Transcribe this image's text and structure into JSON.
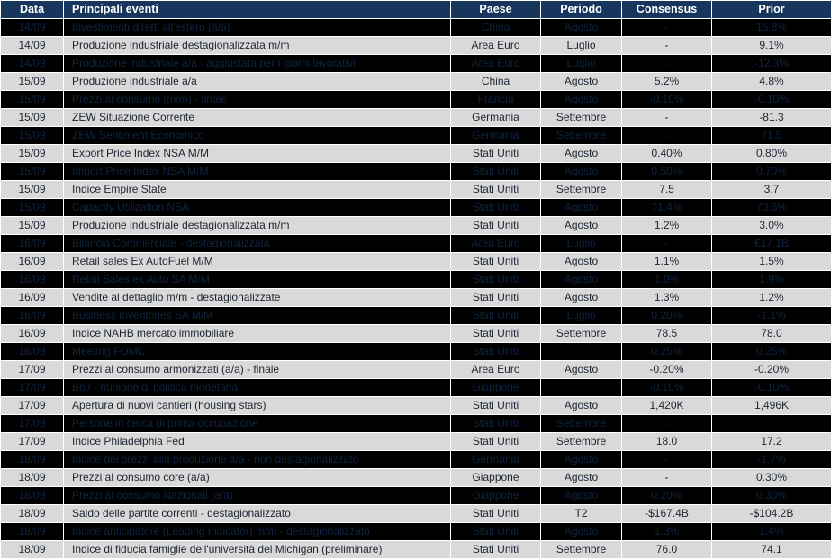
{
  "colors": {
    "header_bg": "#17365d",
    "header_text": "#ffffff",
    "row_light_bg": "#d9d9d9",
    "row_light_text": "#1d2433",
    "row_dark_bg": "#000000",
    "row_dark_text": "#0f2440",
    "grid": "#ffffff"
  },
  "table": {
    "columns": [
      {
        "key": "date",
        "label": "Data"
      },
      {
        "key": "event",
        "label": "Principali eventi"
      },
      {
        "key": "country",
        "label": "Paese"
      },
      {
        "key": "period",
        "label": "Periodo"
      },
      {
        "key": "consensus",
        "label": "Consensus"
      },
      {
        "key": "prior",
        "label": "Prior"
      }
    ],
    "rows": [
      {
        "dark": true,
        "date": "14/09",
        "event": "Investimenti diretti all'estero (a/a)",
        "country": "China",
        "period": "Agosto",
        "consensus": "-",
        "prior": "15.8%"
      },
      {
        "dark": false,
        "date": "14/09",
        "event": "Produzione industriale destagionalizzata m/m",
        "country": "Area Euro",
        "period": "Luglio",
        "consensus": "-",
        "prior": "9.1%"
      },
      {
        "dark": true,
        "date": "14/09",
        "event": "Produzione industriale a/a - aggiustata per i giorni lavorativi",
        "country": "Area Euro",
        "period": "Luglio",
        "consensus": "-",
        "prior": "-12.3%"
      },
      {
        "dark": false,
        "date": "15/09",
        "event": "Produzione industriale a/a",
        "country": "China",
        "period": "Agosto",
        "consensus": "5.2%",
        "prior": "4.8%"
      },
      {
        "dark": true,
        "date": "15/09",
        "event": "Prezzi al consumo (m/m) - finale",
        "country": "Francia",
        "period": "Agosto",
        "consensus": "-0.10%",
        "prior": "-0.10%"
      },
      {
        "dark": false,
        "date": "15/09",
        "event": "ZEW Situazione Corrente",
        "country": "Germania",
        "period": "Settembre",
        "consensus": "-",
        "prior": "-81.3"
      },
      {
        "dark": true,
        "date": "15/09",
        "event": "ZEW Sentiment Economico",
        "country": "Germania",
        "period": "Settembre",
        "consensus": "-",
        "prior": "71.5"
      },
      {
        "dark": false,
        "date": "15/09",
        "event": "Export Price Index NSA M/M",
        "country": "Stati Uniti",
        "period": "Agosto",
        "consensus": "0.40%",
        "prior": "0.80%"
      },
      {
        "dark": true,
        "date": "15/09",
        "event": "Import Price Index NSA M/M",
        "country": "Stati Uniti",
        "period": "Agosto",
        "consensus": "0.50%",
        "prior": "0.70%"
      },
      {
        "dark": false,
        "date": "15/09",
        "event": "Indice Empire State",
        "country": "Stati Uniti",
        "period": "Settembre",
        "consensus": "7.5",
        "prior": "3.7"
      },
      {
        "dark": true,
        "date": "15/09",
        "event": "Capacity Utilization NSA",
        "country": "Stati Uniti",
        "period": "Agosto",
        "consensus": "71.4%",
        "prior": "70.6%"
      },
      {
        "dark": false,
        "date": "15/09",
        "event": "Produzione industriale destagionalizzata m/m",
        "country": "Stati Uniti",
        "period": "Agosto",
        "consensus": "1.2%",
        "prior": "3.0%"
      },
      {
        "dark": true,
        "date": "16/09",
        "event": "Bilancia Commerciale - destagionalizzata",
        "country": "Area Euro",
        "period": "Luglio",
        "consensus": "-",
        "prior": "€17.1B"
      },
      {
        "dark": false,
        "date": "16/09",
        "event": "Retail sales Ex AutoFuel M/M",
        "country": "Stati Uniti",
        "period": "Agosto",
        "consensus": "1.1%",
        "prior": "1.5%"
      },
      {
        "dark": true,
        "date": "16/09",
        "event": "Retail Sales ex Auto SA M/M",
        "country": "Stati Uniti",
        "period": "Agosto",
        "consensus": "1.0%",
        "prior": "1.9%"
      },
      {
        "dark": false,
        "date": "16/09",
        "event": "Vendite al dettaglio m/m - destagionalizzate",
        "country": "Stati Uniti",
        "period": "Agosto",
        "consensus": "1.3%",
        "prior": "1.2%"
      },
      {
        "dark": true,
        "date": "16/09",
        "event": "Business Inventories SA M/M",
        "country": "Stati Uniti",
        "period": "Luglio",
        "consensus": "0.20%",
        "prior": "-1.1%"
      },
      {
        "dark": false,
        "date": "16/09",
        "event": "Indice NAHB mercato immobiliare",
        "country": "Stati Uniti",
        "period": "Settembre",
        "consensus": "78.5",
        "prior": "78.0"
      },
      {
        "dark": true,
        "date": "16/09",
        "event": "Meeting FOMC",
        "country": "Stati Uniti",
        "period": "",
        "consensus": "0.25%",
        "prior": "0.25%"
      },
      {
        "dark": false,
        "date": "17/09",
        "event": "Prezzi al consumo armonizzati (a/a) - finale",
        "country": "Area Euro",
        "period": "Agosto",
        "consensus": "-0.20%",
        "prior": "-0.20%"
      },
      {
        "dark": true,
        "date": "17/09",
        "event": "BoJ - riunione di politica monetaria",
        "country": "Giappone",
        "period": "",
        "consensus": "-0.10%",
        "prior": "-0.10%"
      },
      {
        "dark": false,
        "date": "17/09",
        "event": "Apertura di nuovi cantieri (housing stars)",
        "country": "Stati Uniti",
        "period": "Agosto",
        "consensus": "1,420K",
        "prior": "1,496K"
      },
      {
        "dark": true,
        "date": "17/09",
        "event": "Persone in cerca di prima occupazione",
        "country": "Stati Uniti",
        "period": "Settembre",
        "consensus": "-",
        "prior": "-"
      },
      {
        "dark": false,
        "date": "17/09",
        "event": "Indice Philadelphia Fed",
        "country": "Stati Uniti",
        "period": "Settembre",
        "consensus": "18.0",
        "prior": "17.2"
      },
      {
        "dark": true,
        "date": "18/09",
        "event": "Indice dei prezzi alla produzione a/a - non destagionalizzato",
        "country": "Germania",
        "period": "Agosto",
        "consensus": "-",
        "prior": "-1.7%"
      },
      {
        "dark": false,
        "date": "18/09",
        "event": "Prezzi al consumo core (a/a)",
        "country": "Giappone",
        "period": "Agosto",
        "consensus": "-",
        "prior": "0.30%"
      },
      {
        "dark": true,
        "date": "18/09",
        "event": "Prezzi al consumo Nazionali (a/a)",
        "country": "Giappone",
        "period": "Agosto",
        "consensus": "0.20%",
        "prior": "0.30%"
      },
      {
        "dark": false,
        "date": "18/09",
        "event": "Saldo delle partite correnti - destagionalizzato",
        "country": "Stati Uniti",
        "period": "T2",
        "consensus": "-$167.4B",
        "prior": "-$104.2B"
      },
      {
        "dark": true,
        "date": "18/09",
        "event": "Indice anticipatore (Leading Indicator) m/m - destagionalizzato",
        "country": "Stati Uniti",
        "period": "Agosto",
        "consensus": "1.3%",
        "prior": "1.4%"
      },
      {
        "dark": false,
        "date": "18/09",
        "event": "Indice di fiducia famiglie dell'università del Michigan (preliminare)",
        "country": "Stati Uniti",
        "period": "Settembre",
        "consensus": "76.0",
        "prior": "74.1"
      }
    ]
  }
}
